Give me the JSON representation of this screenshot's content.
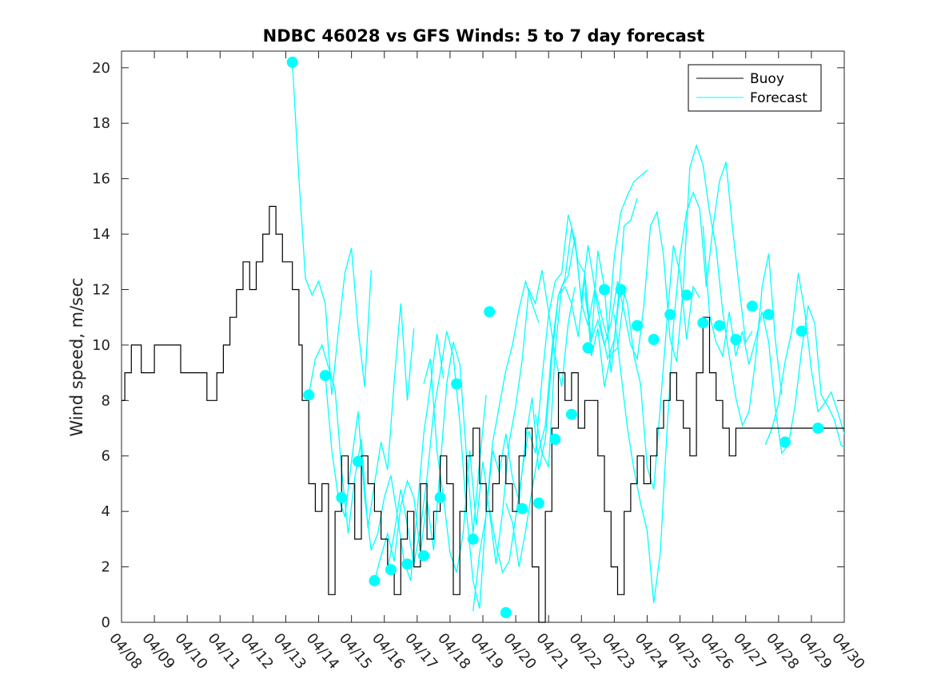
{
  "chart_data": {
    "type": "line",
    "title": "NDBC 46028 vs GFS Winds: 5 to 7 day forecast",
    "xlabel": "",
    "ylabel": "Wind speed, m/sec",
    "xlim": [
      "04/08",
      "04/30"
    ],
    "ylim": [
      0,
      20.6
    ],
    "x_ticks": [
      "04/08",
      "04/09",
      "04/10",
      "04/11",
      "04/12",
      "04/13",
      "04/14",
      "04/15",
      "04/16",
      "04/17",
      "04/18",
      "04/19",
      "04/20",
      "04/21",
      "04/22",
      "04/23",
      "04/24",
      "04/25",
      "04/26",
      "04/27",
      "04/28",
      "04/29",
      "04/30"
    ],
    "y_ticks": [
      0,
      2,
      4,
      6,
      8,
      10,
      12,
      14,
      16,
      18,
      20
    ],
    "grid": false,
    "legend": {
      "position": "top-right",
      "entries": [
        "Buoy",
        "Forecast"
      ]
    },
    "colors": {
      "buoy": "#000000",
      "forecast": "#00ffff"
    },
    "buoy": {
      "name": "Buoy",
      "x_days": [
        0,
        0.1,
        0.3,
        0.6,
        1.0,
        1.5,
        1.8,
        2.2,
        2.6,
        2.9,
        3.1,
        3.3,
        3.5,
        3.7,
        3.9,
        4.1,
        4.3,
        4.5,
        4.7,
        4.9,
        5.1,
        5.2,
        5.4,
        5.5,
        5.7,
        5.9,
        6.1,
        6.3,
        6.5,
        6.7,
        6.9,
        7.1,
        7.3,
        7.5,
        7.7,
        7.9,
        8.1,
        8.3,
        8.5,
        8.7,
        8.9,
        9.1,
        9.3,
        9.5,
        9.7,
        9.9,
        10.1,
        10.3,
        10.5,
        10.7,
        10.9,
        11.1,
        11.3,
        11.5,
        11.7,
        11.9,
        12.1,
        12.3,
        12.5,
        12.7,
        12.9,
        13.1,
        13.3,
        13.5,
        13.7,
        13.9,
        14.1,
        14.3,
        14.5,
        14.7,
        14.9,
        15.1,
        15.3,
        15.5,
        15.7,
        15.9,
        16.1,
        16.3,
        16.5,
        16.7,
        16.9,
        17.1,
        17.3,
        17.5,
        17.7,
        17.9,
        18.1,
        18.3,
        18.5,
        18.7,
        18.9,
        19.1,
        19.3,
        19.5,
        19.7,
        19.9,
        20.1,
        20.3,
        20.5,
        20.7,
        20.9,
        21.1,
        21.3,
        21.5,
        21.7,
        21.9,
        22.0
      ],
      "values": [
        8,
        9,
        10,
        9,
        10,
        10,
        9,
        9,
        8,
        9,
        10,
        11,
        12,
        13,
        12,
        13,
        14,
        15,
        14,
        13,
        13,
        12,
        10,
        8,
        5,
        4,
        5,
        1,
        4,
        6,
        5,
        3,
        6,
        5,
        4,
        3,
        2,
        1,
        3,
        4,
        2,
        5,
        3,
        4,
        6,
        5,
        1,
        4,
        6,
        7,
        5,
        4,
        5,
        6,
        5,
        4,
        6,
        7,
        2,
        0,
        4,
        7,
        9,
        8,
        9,
        7,
        8,
        8,
        6,
        4,
        2,
        1,
        4,
        5,
        6,
        5,
        6,
        7,
        8,
        9,
        8,
        7,
        6,
        9,
        11,
        9,
        8,
        7,
        6,
        7,
        7,
        7,
        7,
        7,
        7,
        7,
        7,
        7,
        7,
        7,
        7,
        7,
        7,
        7,
        7,
        7,
        7
      ]
    },
    "forecast_lines": [
      {
        "x_days": [
          5.2,
          5.4,
          5.6,
          5.8,
          6.0,
          6.2,
          6.4,
          6.6,
          6.8,
          7.0,
          7.2,
          7.4,
          7.6
        ],
        "values": [
          20.2,
          16,
          12.4,
          11.8,
          12.3,
          11.5,
          8.2,
          10.5,
          12.6,
          13.5,
          10.6,
          8.5,
          12.7
        ]
      },
      {
        "x_days": [
          5.7,
          5.9,
          6.1,
          6.3,
          6.5,
          6.7,
          6.9,
          7.1,
          7.3,
          7.5,
          7.7,
          7.9,
          8.1,
          8.3,
          8.5,
          8.7,
          8.9
        ],
        "values": [
          8.2,
          9.5,
          10,
          9.2,
          8.4,
          5.5,
          3.2,
          5.2,
          6.6,
          3.4,
          5,
          6.5,
          5.5,
          8.7,
          11.5,
          8,
          10.6
        ]
      },
      {
        "x_days": [
          6.2,
          6.4,
          6.6,
          6.8,
          7.0,
          7.2,
          7.4,
          7.6,
          7.8,
          8.0,
          8.2,
          8.4,
          8.6,
          8.8,
          9.0,
          9.2,
          9.4,
          9.6,
          9.8
        ],
        "values": [
          8.9,
          6.2,
          4.5,
          3.8,
          5.8,
          7.6,
          4.5,
          2.6,
          3.2,
          4.5,
          5.3,
          3.8,
          2.2,
          1.5,
          4,
          6.8,
          8.5,
          10.4,
          8.8
        ]
      },
      {
        "x_days": [
          7.7,
          7.9,
          8.1,
          8.3,
          8.5,
          8.7,
          8.9,
          9.1,
          9.3,
          9.5,
          9.7,
          9.9,
          10.1,
          10.3,
          10.5,
          10.7,
          10.9,
          11.1
        ],
        "values": [
          1.5,
          2.4,
          3.2,
          2.2,
          4.2,
          5.1,
          4.5,
          2.5,
          4.4,
          2.6,
          5.6,
          8.6,
          10.1,
          9.3,
          6,
          3.2,
          5.8,
          8.2
        ]
      },
      {
        "x_days": [
          8.1,
          8.3,
          8.5,
          8.7,
          8.9,
          9.1,
          9.3,
          9.5,
          9.7,
          9.9,
          10.1,
          10.3,
          10.5,
          10.7,
          10.9,
          11.1,
          11.3,
          11.5,
          11.7,
          11.9,
          12.1,
          12.3,
          12.5,
          12.7
        ],
        "values": [
          1.9,
          3.2,
          4.8,
          3.5,
          2.1,
          3.4,
          5.2,
          7.6,
          9,
          10.5,
          9.6,
          7.2,
          4,
          1.5,
          0.5,
          4,
          6.5,
          7.8,
          9.1,
          10,
          11.3,
          12.3,
          11.5,
          10.8
        ]
      },
      {
        "x_days": [
          9.2,
          9.4,
          9.6,
          9.8,
          10.0,
          10.2,
          10.4,
          10.6,
          10.8,
          11.0,
          11.2,
          11.4,
          11.6,
          11.8,
          12.0,
          12.2,
          12.4,
          12.6,
          12.8,
          13.0,
          13.2,
          13.4,
          13.6,
          13.8
        ],
        "values": [
          8.6,
          9.5,
          6.2,
          4.5,
          2.5,
          1.8,
          3.2,
          6.2,
          3.5,
          5.8,
          4,
          2.1,
          4,
          6.5,
          7.8,
          9.5,
          12,
          11.5,
          12.7,
          11.2,
          9.6,
          8.5,
          10.8,
          12.1
        ]
      },
      {
        "x_days": [
          10.7,
          10.9,
          11.1,
          11.3,
          11.5,
          11.7,
          11.9,
          12.1,
          12.3,
          12.5,
          12.7,
          12.9,
          13.1,
          13.3,
          13.5,
          13.7,
          13.9,
          14.1,
          14.3,
          14.5,
          14.7,
          14.9,
          15.1,
          15.3,
          15.5,
          15.7
        ],
        "values": [
          0.4,
          2.5,
          3.9,
          6.2,
          5.4,
          6.8,
          5.2,
          4.4,
          6.6,
          8.1,
          5.5,
          6.6,
          9.5,
          11.8,
          12.4,
          14.2,
          13,
          12.6,
          10.1,
          13.4,
          12.1,
          9,
          11.4,
          14.3,
          14.5,
          15.3
        ]
      },
      {
        "x_days": [
          11.2,
          11.4,
          11.6,
          11.8,
          12.0,
          12.2,
          12.4,
          12.6,
          12.8,
          13.0,
          13.2,
          13.4,
          13.6,
          13.8,
          14.0,
          14.2,
          14.4,
          14.6,
          14.8,
          15.0,
          15.2,
          15.4,
          15.6,
          15.8,
          16.0
        ],
        "values": [
          4.1,
          2.8,
          1.8,
          2.2,
          3.8,
          5.5,
          6.9,
          6.1,
          8.8,
          11.1,
          12.3,
          12.6,
          14.7,
          13.8,
          11.6,
          13.6,
          12.1,
          11.1,
          10.2,
          13.2,
          14.8,
          15.4,
          15.9,
          16.1,
          16.3
        ]
      },
      {
        "x_days": [
          11.7,
          11.9,
          12.1,
          12.3,
          12.5,
          12.7,
          12.9,
          13.1,
          13.3,
          13.5,
          13.7,
          13.9,
          14.1,
          14.3,
          14.5,
          14.7,
          14.9,
          15.1,
          15.3
        ],
        "values": [
          4.3,
          3.6,
          2,
          3.3,
          4.8,
          6.2,
          7.1,
          9.9,
          11.8,
          12.1,
          11.5,
          10.3,
          12.4,
          9.6,
          10.6,
          8.5,
          9.7,
          9.9,
          11.8
        ]
      },
      {
        "x_days": [
          12.6,
          12.8,
          13.0,
          13.2,
          13.4,
          13.6,
          13.8,
          14.0,
          14.2,
          14.4,
          14.6,
          14.8,
          15.0,
          15.2,
          15.4,
          15.6,
          15.8,
          16.0,
          16.2,
          16.4,
          16.6,
          16.8,
          17.0,
          17.2,
          17.4,
          17.6
        ],
        "values": [
          7.5,
          6.1,
          5.6,
          9.8,
          12.1,
          12.5,
          13.9,
          11.5,
          10.7,
          12,
          10.6,
          9.5,
          10.2,
          12.2,
          11.5,
          9.6,
          8.6,
          5.6,
          4.8,
          7.8,
          10.8,
          13.6,
          12.6,
          10.2,
          12.1,
          11.7
        ]
      },
      {
        "x_days": [
          14.1,
          14.3,
          14.5,
          14.7,
          14.9,
          15.1,
          15.3,
          15.5,
          15.7,
          15.9,
          16.1,
          16.3,
          16.5,
          16.7,
          16.9,
          17.1,
          17.3,
          17.5,
          17.7,
          17.9,
          18.1,
          18.3,
          18.5,
          18.7,
          18.9,
          19.1,
          19.3,
          19.5,
          19.7,
          19.9,
          20.1
        ],
        "values": [
          11.9,
          10.2,
          10.9,
          10,
          10.8,
          12.3,
          11.2,
          10,
          9.5,
          11.4,
          14.3,
          14.8,
          13.2,
          10.2,
          9.4,
          12.1,
          16.4,
          17.2,
          16.5,
          14.8,
          13.5,
          11.2,
          9.6,
          8.1,
          7.1,
          7.6,
          9.5,
          12.1,
          13.3,
          10.2,
          8.2
        ]
      },
      {
        "x_days": [
          15.0,
          15.2,
          15.4,
          15.6,
          15.8,
          16.0,
          16.2,
          16.4,
          16.6,
          16.8,
          17.0,
          17.2,
          17.4,
          17.6,
          17.8,
          18.0,
          18.2,
          18.4,
          18.6,
          18.8,
          19.0,
          19.2
        ],
        "values": [
          11.1,
          9,
          7,
          5.5,
          4.3,
          3.3,
          0.7,
          2.5,
          6.8,
          10.7,
          13.2,
          14.8,
          15.5,
          14.9,
          12.1,
          14.2,
          15.9,
          16.6,
          14.2,
          12.1,
          10.1,
          10.5
        ]
      },
      {
        "x_days": [
          17.7,
          17.9,
          18.1,
          18.3,
          18.5,
          18.7,
          18.9,
          19.1,
          19.3,
          19.5,
          19.7,
          19.9,
          20.1,
          20.3,
          20.5,
          20.7,
          20.9,
          21.1,
          21.3,
          21.5,
          21.7,
          21.9,
          22.0
        ],
        "values": [
          14.3,
          11.1,
          10.1,
          9.6,
          11.2,
          9.6,
          10.5,
          9.3,
          10.2,
          11.2,
          10.1,
          7.7,
          6.1,
          6.4,
          7.8,
          9.8,
          11.4,
          10.8,
          8.2,
          7.8,
          7.3,
          6.4,
          6.3
        ]
      },
      {
        "x_days": [
          19.6,
          19.8,
          20.0,
          20.2,
          20.4,
          20.6,
          20.8,
          21.0,
          21.2,
          21.4,
          21.6,
          21.8,
          22.0
        ],
        "values": [
          6.4,
          7,
          7.9,
          9.4,
          10.5,
          12.6,
          11.2,
          9.1,
          7.6,
          7.9,
          8.3,
          7.6,
          6.8
        ]
      }
    ],
    "forecast_points": {
      "x_days": [
        5.2,
        5.7,
        6.2,
        6.7,
        7.2,
        7.7,
        8.2,
        8.7,
        9.2,
        9.7,
        10.2,
        10.7,
        11.2,
        11.7,
        12.2,
        12.7,
        13.2,
        13.7,
        14.2,
        14.7,
        15.2,
        15.7,
        16.2,
        16.7,
        17.2,
        17.7,
        18.2,
        18.7,
        19.2,
        19.7,
        20.2,
        20.7,
        21.2
      ],
      "values": [
        20.2,
        8.2,
        8.9,
        4.5,
        5.8,
        1.5,
        1.9,
        2.1,
        2.4,
        4.5,
        8.6,
        3.0,
        11.2,
        0.35,
        4.1,
        4.3,
        6.6,
        7.5,
        9.9,
        12.0,
        12.0,
        10.7,
        10.2,
        11.1,
        11.8,
        10.8,
        10.7,
        10.2,
        11.4,
        11.1,
        6.5,
        10.5,
        7.0
      ]
    }
  }
}
